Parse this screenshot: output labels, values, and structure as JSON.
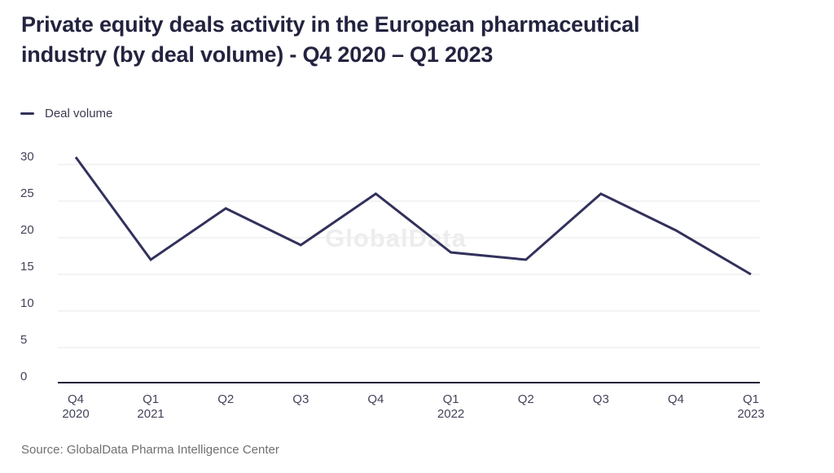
{
  "title": "Private equity deals activity in the European pharmaceutical\nindustry (by deal volume) - Q4 2020 – Q1 2023",
  "legend": {
    "label": "Deal volume"
  },
  "watermark": "GlobalData",
  "source": "Source: GlobalData Pharma Intelligence Center",
  "colors": {
    "title_text": "#232340",
    "line": "#32315c",
    "tick_text": "#43435a",
    "gridline": "#e7e7e7",
    "axis_line": "#23233c",
    "watermark_text": "#ededed",
    "source_text": "#707070",
    "background": "#ffffff"
  },
  "chart_data": {
    "type": "line",
    "title": "Private equity deals activity in the European pharmaceutical industry (by deal volume) - Q4 2020 – Q1 2023",
    "categories": [
      "Q4 2020",
      "Q1 2021",
      "Q2 2021",
      "Q3 2021",
      "Q4 2021",
      "Q1 2022",
      "Q2 2022",
      "Q3 2022",
      "Q4 2022",
      "Q1 2023"
    ],
    "x_ticks": [
      {
        "quarter": "Q4",
        "year": "2020"
      },
      {
        "quarter": "Q1",
        "year": "2021"
      },
      {
        "quarter": "Q2"
      },
      {
        "quarter": "Q3"
      },
      {
        "quarter": "Q4"
      },
      {
        "quarter": "Q1",
        "year": "2022"
      },
      {
        "quarter": "Q2"
      },
      {
        "quarter": "Q3"
      },
      {
        "quarter": "Q4"
      },
      {
        "quarter": "Q1",
        "year": "2023"
      }
    ],
    "series": [
      {
        "name": "Deal volume",
        "values": [
          31,
          17,
          24,
          19,
          26,
          18,
          17,
          26,
          21,
          15
        ]
      }
    ],
    "xlabel": "",
    "ylabel": "",
    "ylim": [
      0,
      30
    ],
    "yticks": [
      0,
      5,
      10,
      15,
      20,
      25,
      30
    ],
    "grid": "horizontal",
    "legend_position": "top-left"
  }
}
